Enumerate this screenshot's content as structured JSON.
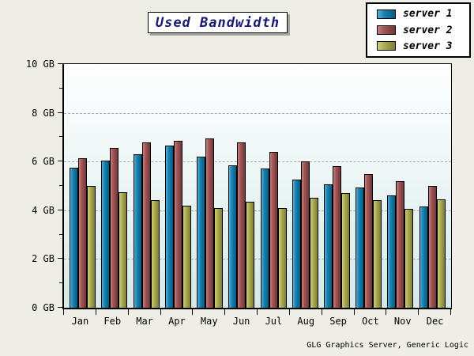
{
  "title": "Used Bandwidth",
  "footer": "GLG Graphics Server, Generic Logic",
  "legend": {
    "position": "top-right",
    "items": [
      "server 1",
      "server 2",
      "server 3"
    ]
  },
  "chart_data": {
    "type": "bar",
    "title": "Used Bandwidth",
    "categories": [
      "Jan",
      "Feb",
      "Mar",
      "Apr",
      "May",
      "Jun",
      "Jul",
      "Aug",
      "Sep",
      "Oct",
      "Nov",
      "Dec"
    ],
    "series": [
      {
        "name": "server 1",
        "color": "#1580b2",
        "color_light": "#56aed4",
        "color_dark": "#0c5a80",
        "values": [
          5.75,
          6.05,
          6.3,
          6.65,
          6.2,
          5.85,
          5.7,
          5.25,
          5.05,
          4.95,
          4.6,
          4.15
        ]
      },
      {
        "name": "server 2",
        "color": "#a05252",
        "color_light": "#c28080",
        "color_dark": "#6f3838",
        "values": [
          6.15,
          6.55,
          6.8,
          6.85,
          6.95,
          6.8,
          6.4,
          6.0,
          5.8,
          5.5,
          5.2,
          5.0
        ]
      },
      {
        "name": "server 3",
        "color": "#abab4f",
        "color_light": "#cfcf7d",
        "color_dark": "#7d7d38",
        "values": [
          5.0,
          4.75,
          4.4,
          4.2,
          4.1,
          4.35,
          4.1,
          4.5,
          4.7,
          4.4,
          4.05,
          4.45
        ]
      }
    ],
    "ylabel": "",
    "xlabel": "",
    "y_unit": "GB",
    "ylim": [
      0,
      10
    ],
    "y_major_ticks": [
      0,
      2,
      4,
      6,
      8,
      10
    ],
    "y_tick_labels": [
      "0 GB",
      "2 GB",
      "4 GB",
      "6 GB",
      "8 GB",
      "10 GB"
    ],
    "y_minor_ticks": [
      1,
      3,
      5,
      7,
      9
    ],
    "grid_values": [
      2,
      4,
      6,
      8
    ],
    "grid_style": "horizontal dashed",
    "legend_position": "top-right"
  }
}
